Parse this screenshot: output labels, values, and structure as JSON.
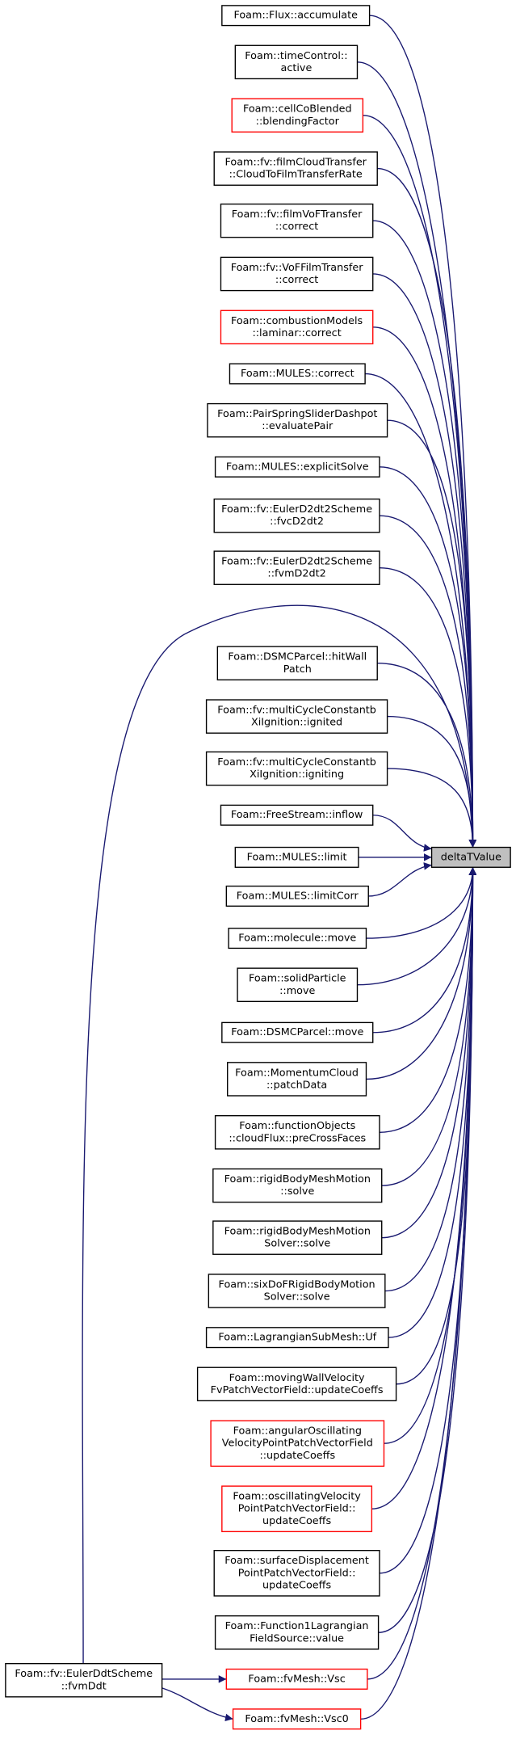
{
  "nodes": [
    {
      "lines": [
        "Foam::Flux::accumulate"
      ],
      "color": "#000000"
    },
    {
      "lines": [
        "Foam::timeControl::",
        "active"
      ],
      "color": "#000000"
    },
    {
      "lines": [
        "Foam::cellCoBlended",
        "::blendingFactor"
      ],
      "color": "#ff0000"
    },
    {
      "lines": [
        "Foam::fv::filmCloudTransfer",
        "::CloudToFilmTransferRate"
      ],
      "color": "#000000"
    },
    {
      "lines": [
        "Foam::fv::filmVoFTransfer",
        "::correct"
      ],
      "color": "#000000"
    },
    {
      "lines": [
        "Foam::fv::VoFFilmTransfer",
        "::correct"
      ],
      "color": "#000000"
    },
    {
      "lines": [
        "Foam::combustionModels",
        "::laminar::correct"
      ],
      "color": "#ff0000"
    },
    {
      "lines": [
        "Foam::MULES::correct"
      ],
      "color": "#000000"
    },
    {
      "lines": [
        "Foam::PairSpringSliderDashpot",
        "::evaluatePair"
      ],
      "color": "#000000"
    },
    {
      "lines": [
        "Foam::MULES::explicitSolve"
      ],
      "color": "#000000"
    },
    {
      "lines": [
        "Foam::fv::EulerD2dt2Scheme",
        "::fvcD2dt2"
      ],
      "color": "#000000"
    },
    {
      "lines": [
        "Foam::fv::EulerD2dt2Scheme",
        "::fvmD2dt2"
      ],
      "color": "#000000"
    },
    {
      "lines": [
        "Foam::DSMCParcel::hitWall",
        "Patch"
      ],
      "color": "#000000"
    },
    {
      "lines": [
        "Foam::fv::multiCycleConstantb",
        "XiIgnition::ignited"
      ],
      "color": "#000000"
    },
    {
      "lines": [
        "Foam::fv::multiCycleConstantb",
        "XiIgnition::igniting"
      ],
      "color": "#000000"
    },
    {
      "lines": [
        "Foam::FreeStream::inflow"
      ],
      "color": "#000000"
    },
    {
      "lines": [
        "Foam::MULES::limit"
      ],
      "color": "#000000"
    },
    {
      "lines": [
        "Foam::MULES::limitCorr"
      ],
      "color": "#000000"
    },
    {
      "lines": [
        "Foam::molecule::move"
      ],
      "color": "#000000"
    },
    {
      "lines": [
        "Foam::solidParticle",
        "::move"
      ],
      "color": "#000000"
    },
    {
      "lines": [
        "Foam::DSMCParcel::move"
      ],
      "color": "#000000"
    },
    {
      "lines": [
        "Foam::MomentumCloud",
        "::patchData"
      ],
      "color": "#000000"
    },
    {
      "lines": [
        "Foam::functionObjects",
        "::cloudFlux::preCrossFaces"
      ],
      "color": "#000000"
    },
    {
      "lines": [
        "Foam::rigidBodyMeshMotion",
        "::solve"
      ],
      "color": "#000000"
    },
    {
      "lines": [
        "Foam::rigidBodyMeshMotion",
        "Solver::solve"
      ],
      "color": "#000000"
    },
    {
      "lines": [
        "Foam::sixDoFRigidBodyMotion",
        "Solver::solve"
      ],
      "color": "#000000"
    },
    {
      "lines": [
        "Foam::LagrangianSubMesh::Uf"
      ],
      "color": "#000000"
    },
    {
      "lines": [
        "Foam::movingWallVelocity",
        "FvPatchVectorField::updateCoeffs"
      ],
      "color": "#000000"
    },
    {
      "lines": [
        "Foam::angularOscillating",
        "VelocityPointPatchVectorField",
        "::updateCoeffs"
      ],
      "color": "#ff0000"
    },
    {
      "lines": [
        "Foam::oscillatingVelocity",
        "PointPatchVectorField::",
        "updateCoeffs"
      ],
      "color": "#ff0000"
    },
    {
      "lines": [
        "Foam::surfaceDisplacement",
        "PointPatchVectorField::",
        "updateCoeffs"
      ],
      "color": "#000000"
    },
    {
      "lines": [
        "Foam::Function1Lagrangian",
        "FieldSource::value"
      ],
      "color": "#000000"
    },
    {
      "lines": [
        "Foam::fvMesh::Vsc"
      ],
      "color": "#ff0000"
    },
    {
      "lines": [
        "Foam::fvMesh::Vsc0"
      ],
      "color": "#ff0000"
    },
    {
      "lines": [
        "Foam::fv::EulerDdtScheme",
        "::fvmDdt"
      ],
      "color": "#000000"
    }
  ],
  "target": {
    "lines": [
      "deltaTValue"
    ]
  }
}
